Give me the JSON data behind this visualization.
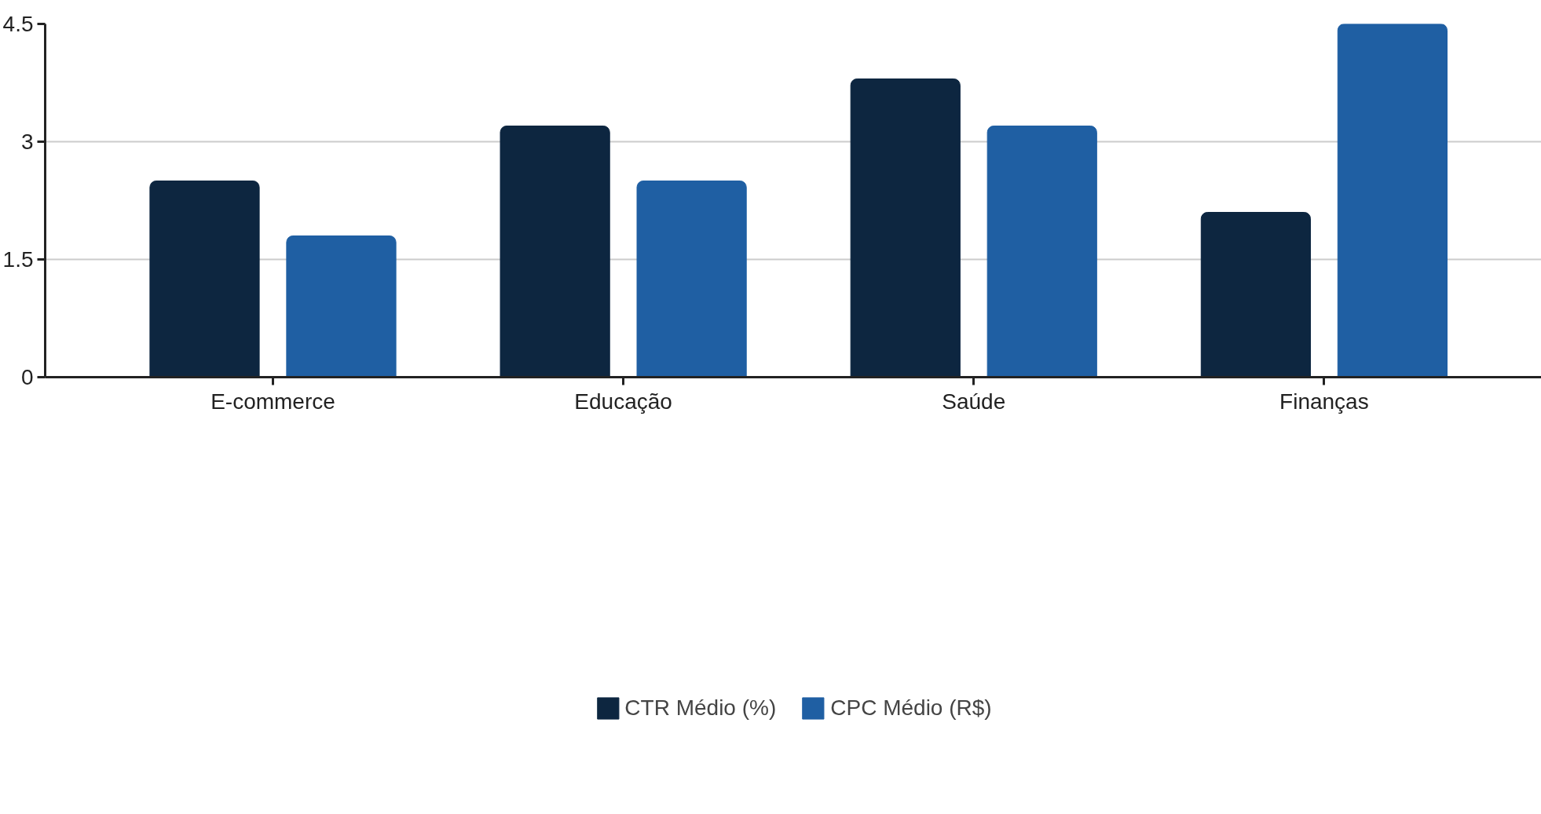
{
  "chart_data": {
    "type": "bar",
    "categories": [
      "E-commerce",
      "Educação",
      "Saúde",
      "Finanças"
    ],
    "series": [
      {
        "name": "CTR Médio (%)",
        "color": "#0d2640",
        "values": [
          2.5,
          3.2,
          3.8,
          2.1
        ]
      },
      {
        "name": "CPC Médio (R$)",
        "color": "#1f5fa3",
        "values": [
          1.8,
          2.5,
          3.2,
          4.5
        ]
      }
    ],
    "ylim": [
      0,
      4.5
    ],
    "yticks": [
      0,
      1.5,
      3,
      4.5
    ],
    "grid": "y",
    "legend": "bottom"
  }
}
